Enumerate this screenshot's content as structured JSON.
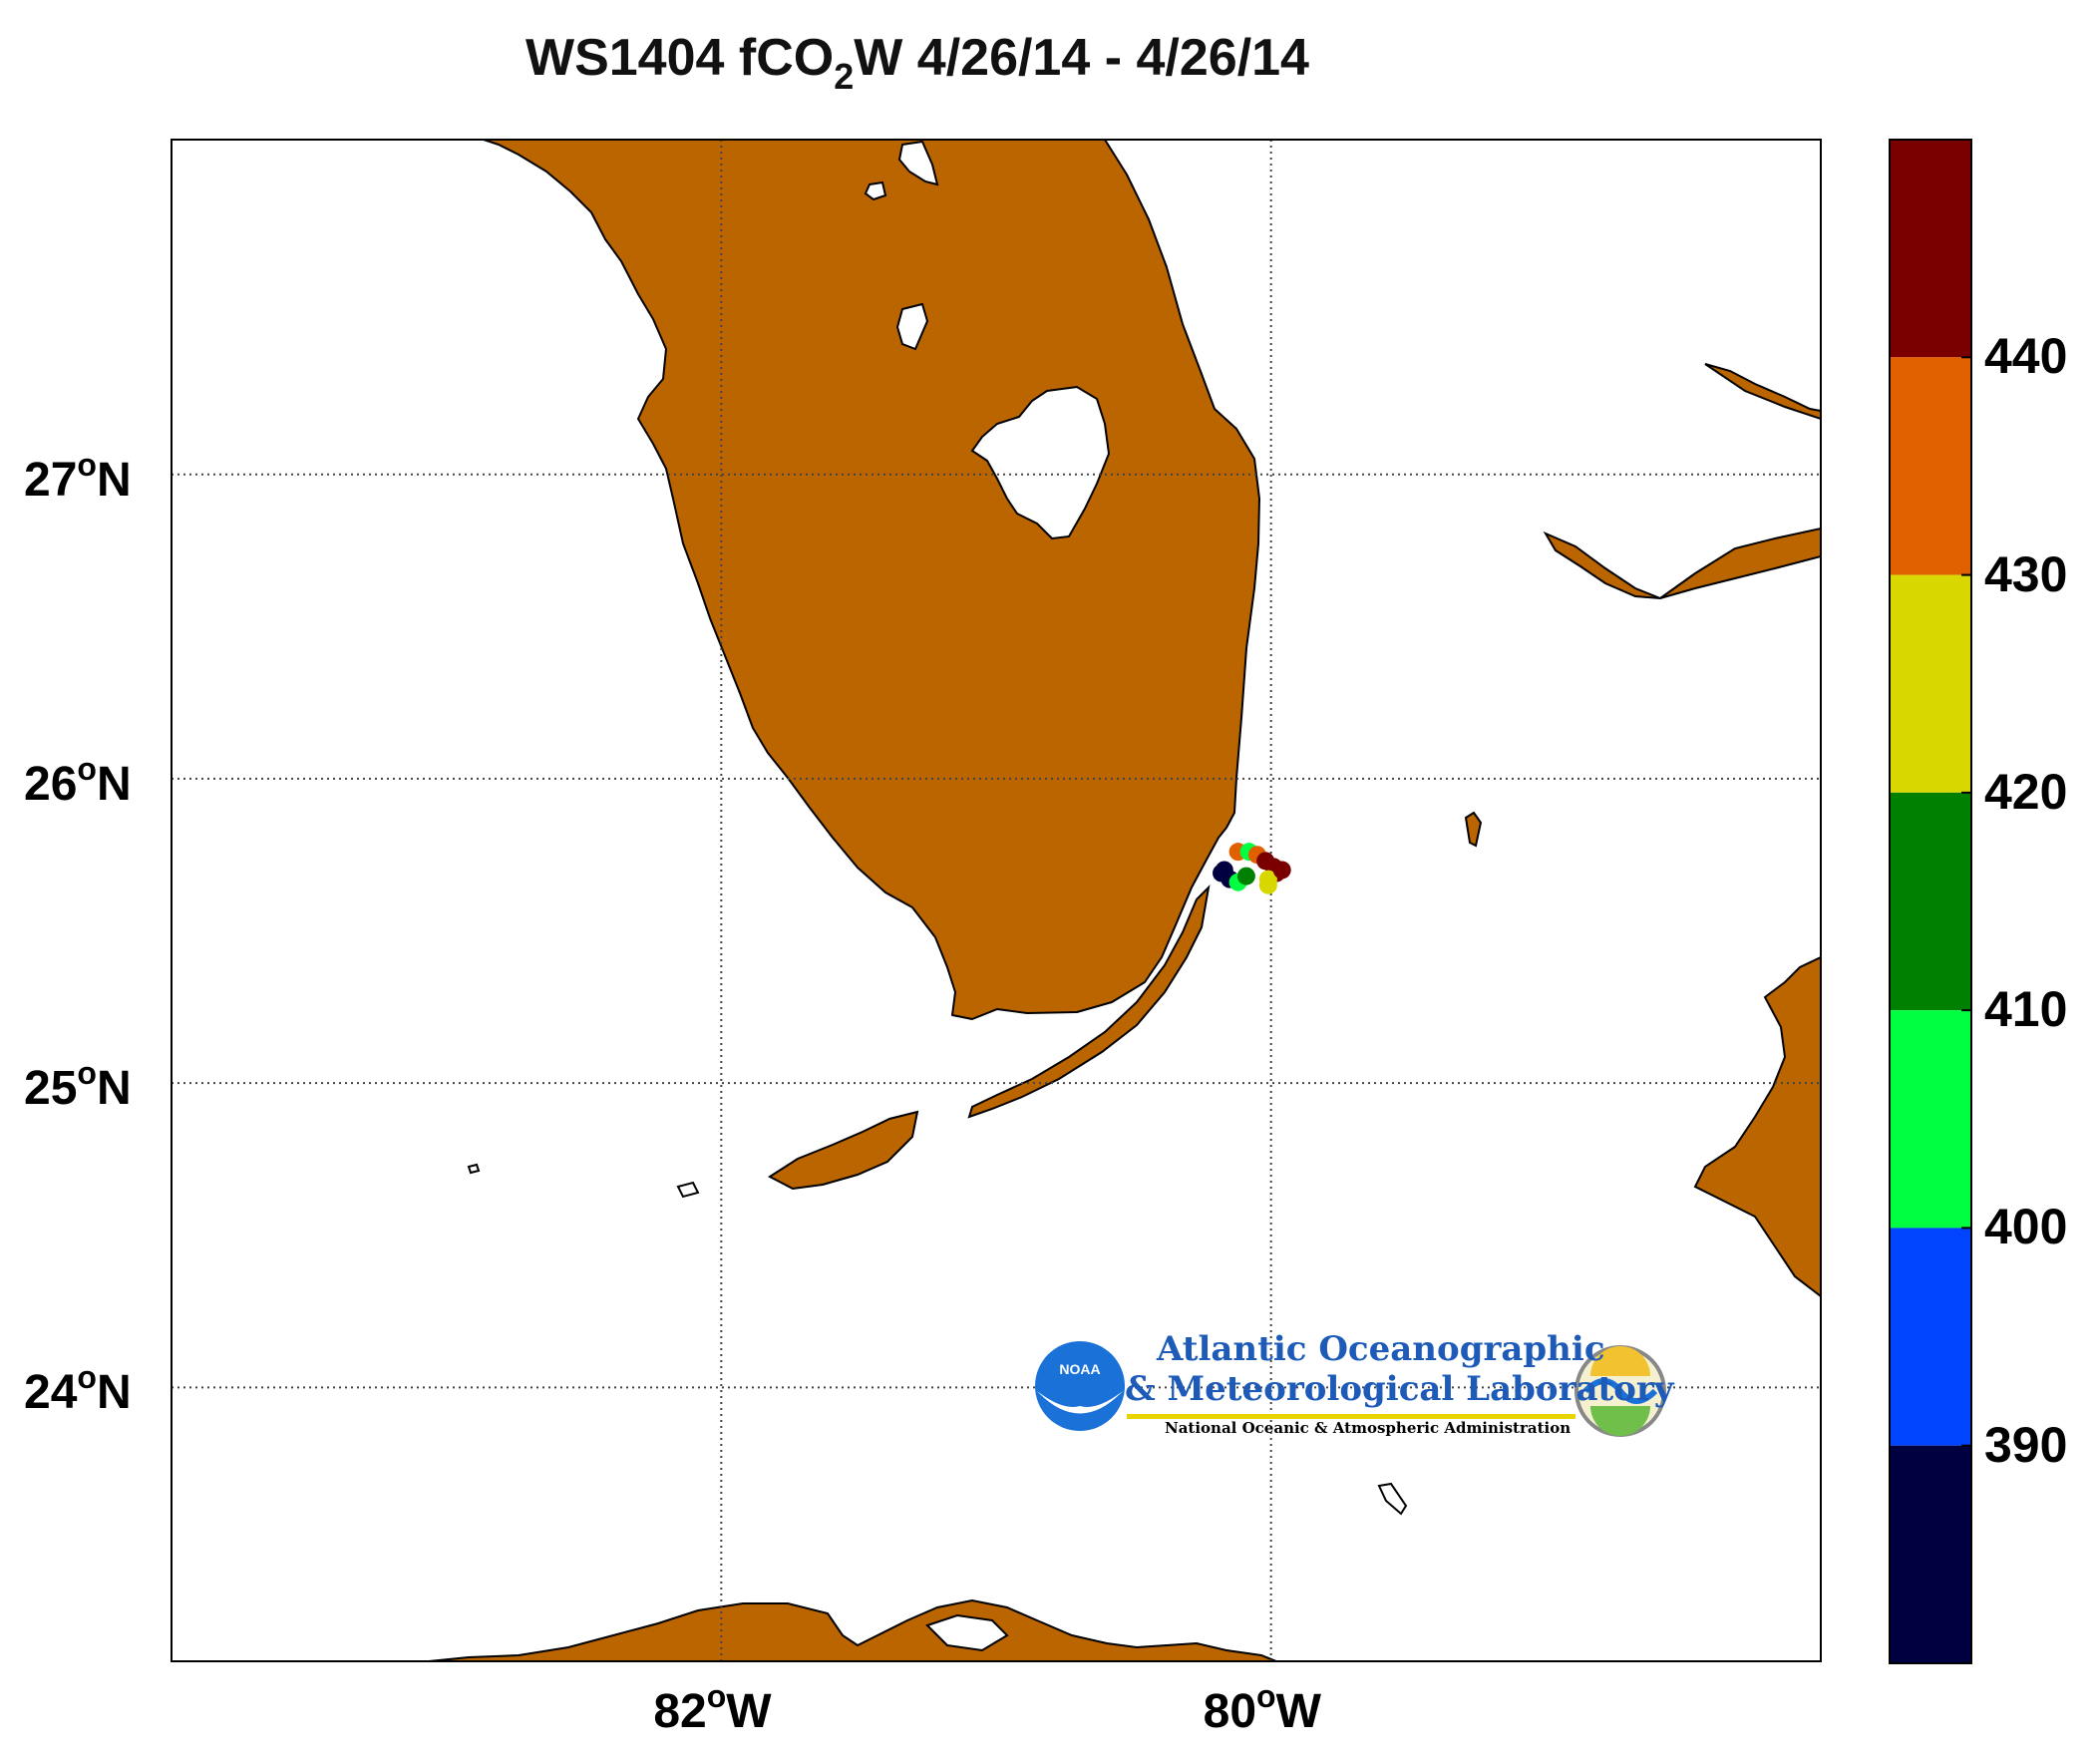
{
  "title": {
    "prefix": "WS1404 fCO",
    "subscript": "2",
    "suffix": "W 4/26/14 - 4/26/14"
  },
  "axes": {
    "latitude_ticks": [
      {
        "value": 27,
        "label": "27",
        "hemisphere": "N"
      },
      {
        "value": 26,
        "label": "26",
        "hemisphere": "N"
      },
      {
        "value": 25,
        "label": "25",
        "hemisphere": "N"
      },
      {
        "value": 24,
        "label": "24",
        "hemisphere": "N"
      }
    ],
    "longitude_ticks": [
      {
        "value": -82,
        "label": "82",
        "hemisphere": "W"
      },
      {
        "value": -80,
        "label": "80",
        "hemisphere": "W"
      }
    ],
    "degree_symbol": "o",
    "grid": true,
    "lat_range": [
      23.1,
      28.1
    ],
    "lon_range": [
      -84.0,
      -78.0
    ]
  },
  "colorbar": {
    "ticks": [
      "440",
      "430",
      "420",
      "410",
      "400",
      "390"
    ],
    "range": [
      380,
      450
    ],
    "bands": [
      {
        "from": 440,
        "to": 450,
        "color": "#7a0000"
      },
      {
        "from": 430,
        "to": 440,
        "color": "#e06000"
      },
      {
        "from": 420,
        "to": 430,
        "color": "#d8d800"
      },
      {
        "from": 410,
        "to": 420,
        "color": "#008000"
      },
      {
        "from": 400,
        "to": 410,
        "color": "#00ff40"
      },
      {
        "from": 390,
        "to": 400,
        "color": "#0044ff"
      },
      {
        "from": 380,
        "to": 390,
        "color": "#000040"
      }
    ]
  },
  "colors": {
    "land": "#bb6500",
    "coast": "#000000",
    "water": "#ffffff",
    "grid": "#444444"
  },
  "measurements": [
    {
      "lat": 25.69,
      "lon": -80.18,
      "fco2": 385
    },
    {
      "lat": 25.7,
      "lon": -80.17,
      "fco2": 386
    },
    {
      "lat": 25.67,
      "lon": -80.15,
      "fco2": 388
    },
    {
      "lat": 25.66,
      "lon": -80.12,
      "fco2": 408
    },
    {
      "lat": 25.68,
      "lon": -80.09,
      "fco2": 415
    },
    {
      "lat": 25.76,
      "lon": -80.12,
      "fco2": 435
    },
    {
      "lat": 25.76,
      "lon": -80.08,
      "fco2": 402
    },
    {
      "lat": 25.75,
      "lon": -80.05,
      "fco2": 432
    },
    {
      "lat": 25.73,
      "lon": -80.02,
      "fco2": 445
    },
    {
      "lat": 25.71,
      "lon": -79.99,
      "fco2": 446
    },
    {
      "lat": 25.69,
      "lon": -79.98,
      "fco2": 447
    },
    {
      "lat": 25.67,
      "lon": -80.01,
      "fco2": 425
    },
    {
      "lat": 25.65,
      "lon": -80.01,
      "fco2": 424
    },
    {
      "lat": 25.7,
      "lon": -79.96,
      "fco2": 441
    }
  ],
  "logo": {
    "badge_text": "NOAA",
    "line1": "Atlantic Oceanographic",
    "line2": "& Meteorological Laboratory",
    "line3": "National Oceanic & Atmospheric Administration"
  }
}
